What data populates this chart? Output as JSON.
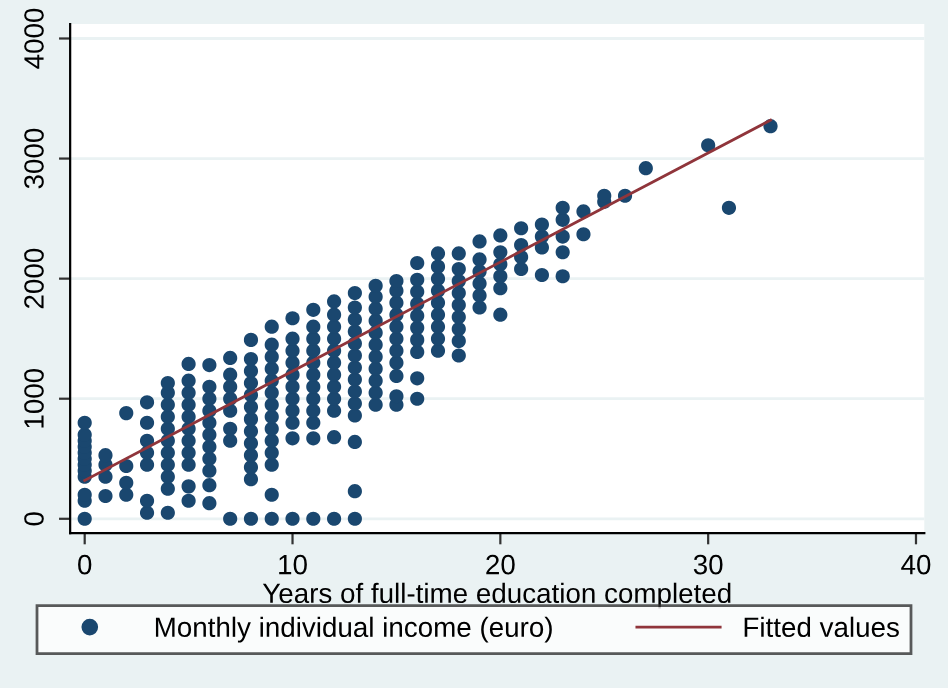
{
  "chart_data": {
    "type": "scatter",
    "xlabel": "Years of full-time education completed",
    "xlim": [
      -0.7,
      40.4
    ],
    "xticks": [
      0,
      10,
      20,
      30,
      40
    ],
    "ylim": [
      -120,
      4120
    ],
    "yticks": [
      0,
      1000,
      2000,
      3000,
      4000
    ],
    "grid": "y",
    "legend": "bottom",
    "marker": "circle",
    "series": [
      {
        "name": "Monthly individual income (euro)",
        "color": "#1a476f",
        "x": [
          0,
          0,
          0,
          0,
          0,
          0,
          0,
          0,
          0,
          0,
          0,
          0,
          1,
          1,
          1,
          1,
          2,
          2,
          2,
          2,
          3,
          3,
          3,
          3,
          3,
          3,
          3,
          4,
          4,
          4,
          4,
          4,
          4,
          4,
          4,
          4,
          4,
          4,
          5,
          5,
          5,
          5,
          5,
          5,
          5,
          5,
          5,
          5,
          5,
          6,
          6,
          6,
          6,
          6,
          6,
          6,
          6,
          6,
          6,
          6,
          7,
          7,
          7,
          7,
          7,
          7,
          7,
          7,
          8,
          8,
          8,
          8,
          8,
          8,
          8,
          8,
          8,
          8,
          8,
          8,
          8,
          9,
          9,
          9,
          9,
          9,
          9,
          9,
          9,
          9,
          9,
          9,
          9,
          9,
          9,
          10,
          10,
          10,
          10,
          10,
          10,
          10,
          10,
          10,
          10,
          10,
          11,
          11,
          11,
          11,
          11,
          11,
          11,
          11,
          11,
          11,
          11,
          11,
          12,
          12,
          12,
          12,
          12,
          12,
          12,
          12,
          12,
          12,
          12,
          12,
          13,
          13,
          13,
          13,
          13,
          13,
          13,
          13,
          13,
          13,
          13,
          13,
          13,
          13,
          14,
          14,
          14,
          14,
          14,
          14,
          14,
          14,
          14,
          14,
          14,
          15,
          15,
          15,
          15,
          15,
          15,
          15,
          15,
          15,
          15,
          15,
          16,
          16,
          16,
          16,
          16,
          16,
          16,
          16,
          16,
          16,
          17,
          17,
          17,
          17,
          17,
          17,
          17,
          17,
          17,
          18,
          18,
          18,
          18,
          18,
          18,
          18,
          18,
          18,
          19,
          19,
          19,
          19,
          19,
          19,
          20,
          20,
          20,
          20,
          20,
          20,
          21,
          21,
          21,
          21,
          22,
          22,
          22,
          22,
          23,
          23,
          23,
          23,
          23,
          24,
          24,
          25,
          25,
          26,
          27,
          30,
          31,
          33
        ],
        "values": [
          0,
          150,
          200,
          350,
          400,
          450,
          500,
          550,
          600,
          650,
          700,
          800,
          190,
          350,
          450,
          530,
          200,
          300,
          440,
          880,
          50,
          150,
          450,
          550,
          650,
          800,
          970,
          50,
          250,
          350,
          450,
          550,
          650,
          750,
          850,
          950,
          1050,
          1130,
          150,
          270,
          450,
          550,
          650,
          750,
          850,
          950,
          1050,
          1150,
          1290,
          130,
          280,
          400,
          500,
          600,
          700,
          800,
          900,
          1000,
          1100,
          1280,
          0,
          650,
          750,
          900,
          1000,
          1100,
          1200,
          1340,
          0,
          330,
          430,
          530,
          630,
          730,
          830,
          930,
          1030,
          1130,
          1230,
          1330,
          1490,
          0,
          200,
          450,
          550,
          650,
          750,
          850,
          950,
          1050,
          1150,
          1250,
          1350,
          1450,
          1600,
          0,
          670,
          800,
          900,
          1000,
          1100,
          1200,
          1300,
          1400,
          1500,
          1670,
          0,
          670,
          800,
          900,
          1000,
          1100,
          1200,
          1300,
          1400,
          1500,
          1600,
          1740,
          0,
          680,
          900,
          1000,
          1100,
          1200,
          1300,
          1400,
          1500,
          1600,
          1700,
          1810,
          0,
          230,
          640,
          860,
          960,
          1060,
          1160,
          1260,
          1360,
          1460,
          1560,
          1660,
          1760,
          1880,
          950,
          1050,
          1150,
          1250,
          1350,
          1450,
          1550,
          1650,
          1750,
          1850,
          1940,
          950,
          1020,
          1190,
          1300,
          1400,
          1500,
          1600,
          1700,
          1800,
          1900,
          1980,
          1000,
          1170,
          1390,
          1490,
          1590,
          1690,
          1790,
          1890,
          1990,
          2130,
          1400,
          1500,
          1600,
          1700,
          1800,
          1900,
          2000,
          2100,
          2210,
          1360,
          1480,
          1580,
          1680,
          1780,
          1880,
          1980,
          2080,
          2210,
          1760,
          1860,
          1960,
          2060,
          2160,
          2310,
          1700,
          1920,
          2020,
          2120,
          2220,
          2360,
          2080,
          2180,
          2280,
          2420,
          2030,
          2260,
          2350,
          2450,
          2020,
          2220,
          2350,
          2490,
          2590,
          2370,
          2560,
          2640,
          2690,
          2690,
          2920,
          3110,
          2590,
          3270
        ]
      },
      {
        "name": "Fitted values",
        "type": "line",
        "color": "#90353b",
        "marker": "none",
        "line_style": "solid",
        "x": [
          0,
          33
        ],
        "values": [
          320,
          3320
        ]
      }
    ]
  }
}
